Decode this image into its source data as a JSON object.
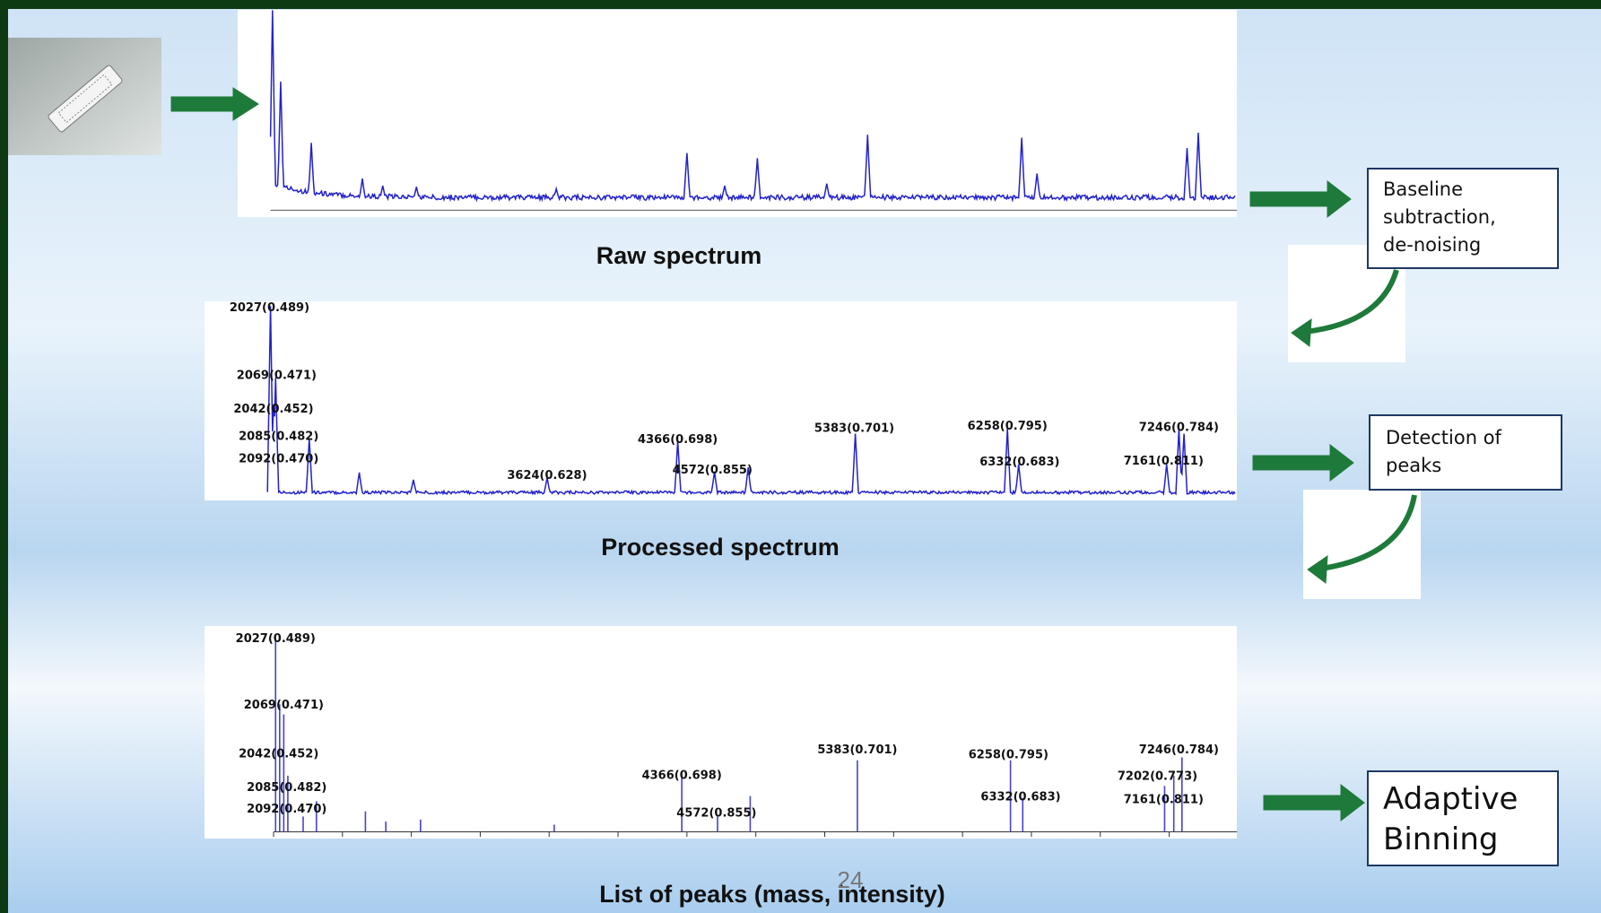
{
  "captions": {
    "raw": "Raw spectrum",
    "processed": "Processed spectrum",
    "list": "List of peaks (mass, intensity)"
  },
  "steps": {
    "baseline": [
      "Baseline",
      "subtraction,",
      "de-noising"
    ],
    "detection": [
      "Detection of",
      "peaks"
    ],
    "binning": [
      "Adaptive",
      "Binning"
    ]
  },
  "processed_peaks": [
    "2027(0.489)",
    "2069(0.471)",
    "2042(0.452)",
    "2085(0.482)",
    "2092(0.470)",
    "3624(0.628)",
    "4366(0.698)",
    "4572(0.855)",
    "5383(0.701)",
    "6258(0.795)",
    "6332(0.683)",
    "7246(0.784)",
    "7161(0.811)"
  ],
  "list_peaks": [
    "2027(0.489)",
    "2069(0.471)",
    "2042(0.452)",
    "2085(0.482)",
    "2092(0.470)",
    "4366(0.698)",
    "4572(0.855)",
    "5383(0.701)",
    "6258(0.795)",
    "6332(0.683)",
    "7246(0.784)",
    "7202(0.773)",
    "7161(0.811)"
  ],
  "page_number": "24"
}
